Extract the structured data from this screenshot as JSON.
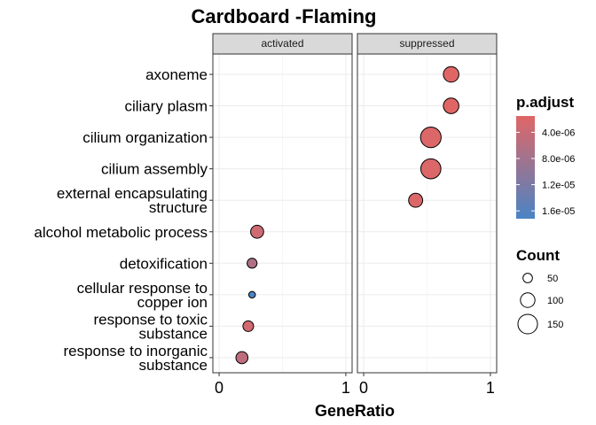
{
  "chart_data": {
    "type": "scatter",
    "title": "Cardboard -Flaming",
    "xlabel": "GeneRatio",
    "ylabel": "",
    "xlim": [
      0,
      1
    ],
    "x_ticks": [
      "0",
      "1"
    ],
    "panels": [
      "activated",
      "suppressed"
    ],
    "categories": [
      "axoneme",
      "ciliary plasm",
      "cilium organization",
      "cilium assembly",
      "external encapsulating structure",
      "alcohol metabolic process",
      "detoxification",
      "cellular response to copper ion",
      "response to toxic substance",
      "response to inorganic substance"
    ],
    "category_lines": [
      [
        "axoneme"
      ],
      [
        "ciliary plasm"
      ],
      [
        "cilium organization"
      ],
      [
        "cilium assembly"
      ],
      [
        "external encapsulating",
        "structure"
      ],
      [
        "alcohol metabolic process"
      ],
      [
        "detoxification"
      ],
      [
        "cellular response to",
        "copper ion"
      ],
      [
        "response to toxic",
        "substance"
      ],
      [
        "response to inorganic",
        "substance"
      ]
    ],
    "points": [
      {
        "panel": "suppressed",
        "term": "axoneme",
        "gene_ratio": 0.69,
        "count": 110,
        "p_adjust": 1.5e-06
      },
      {
        "panel": "suppressed",
        "term": "ciliary plasm",
        "gene_ratio": 0.69,
        "count": 110,
        "p_adjust": 1.5e-06
      },
      {
        "panel": "suppressed",
        "term": "cilium organization",
        "gene_ratio": 0.53,
        "count": 160,
        "p_adjust": 2e-06
      },
      {
        "panel": "suppressed",
        "term": "cilium assembly",
        "gene_ratio": 0.53,
        "count": 155,
        "p_adjust": 2e-06
      },
      {
        "panel": "suppressed",
        "term": "external encapsulating structure",
        "gene_ratio": 0.41,
        "count": 95,
        "p_adjust": 2e-06
      },
      {
        "panel": "activated",
        "term": "alcohol metabolic process",
        "gene_ratio": 0.3,
        "count": 85,
        "p_adjust": 3.5e-06
      },
      {
        "panel": "activated",
        "term": "detoxification",
        "gene_ratio": 0.26,
        "count": 55,
        "p_adjust": 6.5e-06
      },
      {
        "panel": "activated",
        "term": "cellular response to copper ion",
        "gene_ratio": 0.26,
        "count": 22,
        "p_adjust": 1.7e-05
      },
      {
        "panel": "activated",
        "term": "response to toxic substance",
        "gene_ratio": 0.23,
        "count": 62,
        "p_adjust": 3e-06
      },
      {
        "panel": "activated",
        "term": "response to inorganic substance",
        "gene_ratio": 0.18,
        "count": 75,
        "p_adjust": 5e-06
      }
    ],
    "color_legend": {
      "title": "p.adjust",
      "labels": [
        "4.0e-06",
        "8.0e-06",
        "1.2e-05",
        "1.6e-05"
      ],
      "values": [
        4e-06,
        8e-06,
        1.2e-05,
        1.6e-05
      ],
      "range": [
        1.5e-06,
        1.72e-05
      ],
      "low_color": "#E06666",
      "high_color": "#4A84C4"
    },
    "size_legend": {
      "title": "Count",
      "values": [
        50,
        100,
        150
      ],
      "labels": [
        "50",
        "100",
        "150"
      ]
    },
    "grid": true,
    "legend_position": "right"
  }
}
